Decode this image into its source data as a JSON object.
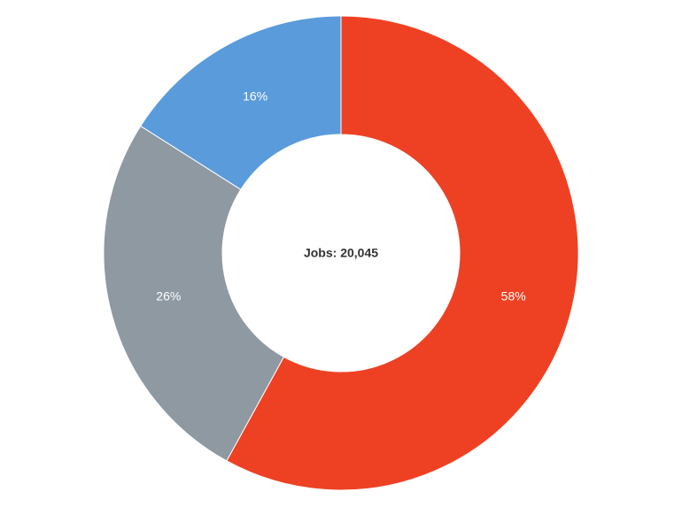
{
  "chart_data": {
    "type": "pie",
    "center_label": "Jobs: 20,045",
    "values": [
      58,
      26,
      16
    ],
    "value_labels": [
      "58%",
      "26%",
      "16%"
    ],
    "colors": [
      "#ee4123",
      "#8e99a2",
      "#5a9bdc"
    ],
    "inner_radius_ratio": 0.5,
    "start_angle": 0,
    "direction": "clockwise"
  }
}
